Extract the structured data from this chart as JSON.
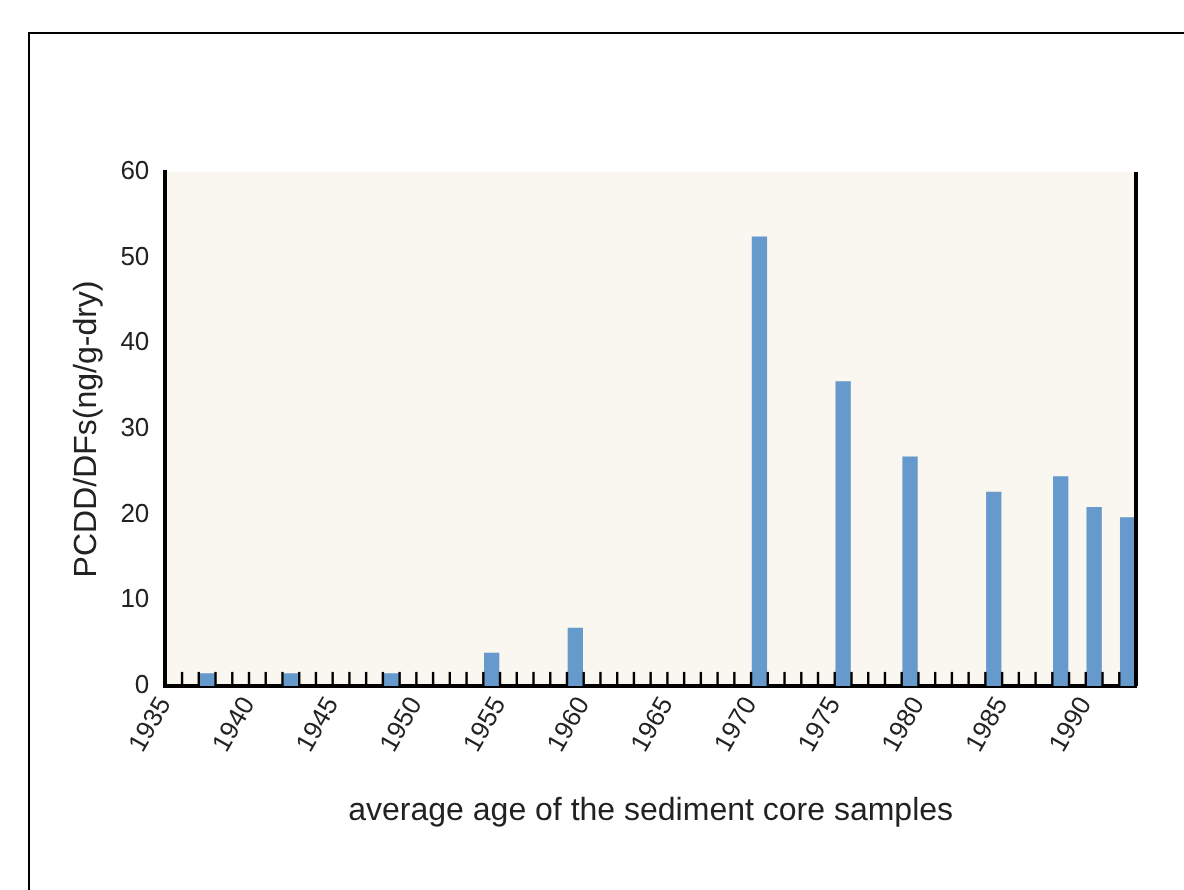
{
  "chart_data": {
    "type": "bar",
    "xlabel": "average age of the sediment core samples",
    "ylabel": "PCDD/DFs(ng/g-dry)",
    "x": [
      1937.5,
      1942.5,
      1948.5,
      1954.5,
      1959.5,
      1970.5,
      1975.5,
      1979.5,
      1984.5,
      1988.5,
      1990.5,
      1992.5
    ],
    "values": [
      1.4,
      1.4,
      1.4,
      3.8,
      6.7,
      52.4,
      35.5,
      26.7,
      22.6,
      24.4,
      20.8,
      19.6
    ],
    "color": "#6699cc",
    "xlim": [
      1935,
      1993
    ],
    "xticks": [
      1935,
      {
        "value": 1936,
        "label": null
      },
      {
        "value": 1937,
        "label": null
      },
      {
        "value": 1938,
        "label": null
      },
      {
        "value": 1939,
        "label": null
      },
      1940,
      {
        "value": 1941,
        "label": null
      },
      {
        "value": 1942,
        "label": null
      },
      {
        "value": 1943,
        "label": null
      },
      {
        "value": 1944,
        "label": null
      },
      1945,
      {
        "value": 1946,
        "label": null
      },
      {
        "value": 1947,
        "label": null
      },
      {
        "value": 1948,
        "label": null
      },
      {
        "value": 1949,
        "label": null
      },
      1950,
      {
        "value": 1951,
        "label": null
      },
      {
        "value": 1952,
        "label": null
      },
      {
        "value": 1953,
        "label": null
      },
      {
        "value": 1954,
        "label": null
      },
      1955,
      {
        "value": 1956,
        "label": null
      },
      {
        "value": 1957,
        "label": null
      },
      {
        "value": 1958,
        "label": null
      },
      {
        "value": 1959,
        "label": null
      },
      1960,
      {
        "value": 1961,
        "label": null
      },
      {
        "value": 1962,
        "label": null
      },
      {
        "value": 1963,
        "label": null
      },
      {
        "value": 1964,
        "label": null
      },
      1965,
      {
        "value": 1966,
        "label": null
      },
      {
        "value": 1967,
        "label": null
      },
      {
        "value": 1968,
        "label": null
      },
      {
        "value": 1969,
        "label": null
      },
      1970,
      {
        "value": 1971,
        "label": null
      },
      {
        "value": 1972,
        "label": null
      },
      {
        "value": 1973,
        "label": null
      },
      {
        "value": 1974,
        "label": null
      },
      1975,
      {
        "value": 1976,
        "label": null
      },
      {
        "value": 1977,
        "label": null
      },
      {
        "value": 1978,
        "label": null
      },
      {
        "value": 1979,
        "label": null
      },
      1980,
      {
        "value": 1981,
        "label": null
      },
      {
        "value": 1982,
        "label": null
      },
      {
        "value": 1983,
        "label": null
      },
      {
        "value": 1984,
        "label": null
      },
      1985,
      {
        "value": 1986,
        "label": null
      },
      {
        "value": 1987,
        "label": null
      },
      {
        "value": 1988,
        "label": null
      },
      {
        "value": 1989,
        "label": null
      },
      1990,
      {
        "value": 1991,
        "label": null
      },
      {
        "value": 1992,
        "label": null
      },
      {
        "value": 1993,
        "label": null
      }
    ],
    "ylim": [
      0,
      60
    ],
    "yticks": [
      0,
      10,
      20,
      30,
      40,
      50,
      60
    ],
    "grid": false,
    "legend": false
  }
}
